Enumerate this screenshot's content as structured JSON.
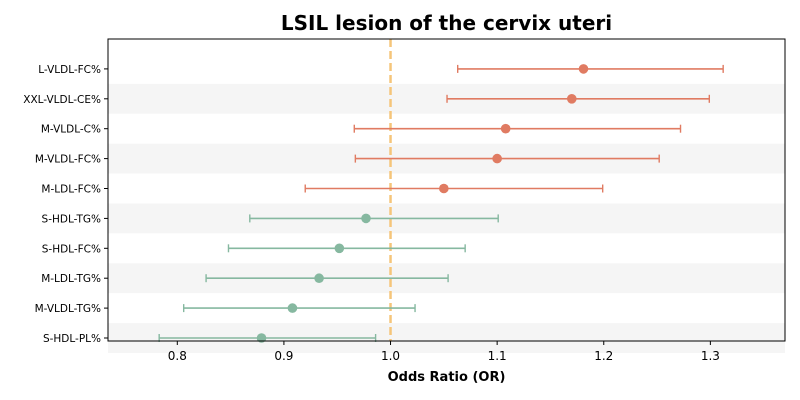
{
  "chart_data": {
    "type": "forest",
    "title": "LSIL lesion of the cervix uteri",
    "xlabel": "Odds Ratio (OR)",
    "xlim": [
      0.735,
      1.37
    ],
    "xticks": [
      "0.8",
      "0.9",
      "1.0",
      "1.1",
      "1.2",
      "1.3"
    ],
    "reference_line": 1.0,
    "colors": {
      "above_one": "#e07b62",
      "below_one": "#86b8a0",
      "reference": "#f5c57a",
      "stripe": "#f5f5f5"
    },
    "rows": [
      {
        "label": "L-VLDL-FC%",
        "or": 1.181,
        "ci_low": 1.063,
        "ci_high": 1.312
      },
      {
        "label": "XXL-VLDL-CE%",
        "or": 1.17,
        "ci_low": 1.053,
        "ci_high": 1.299
      },
      {
        "label": "M-VLDL-C%",
        "or": 1.108,
        "ci_low": 0.966,
        "ci_high": 1.272
      },
      {
        "label": "M-VLDL-FC%",
        "or": 1.1,
        "ci_low": 0.967,
        "ci_high": 1.252
      },
      {
        "label": "M-LDL-FC%",
        "or": 1.05,
        "ci_low": 0.92,
        "ci_high": 1.199
      },
      {
        "label": "S-HDL-TG%",
        "or": 0.977,
        "ci_low": 0.868,
        "ci_high": 1.101
      },
      {
        "label": "S-HDL-FC%",
        "or": 0.952,
        "ci_low": 0.848,
        "ci_high": 1.07
      },
      {
        "label": "M-LDL-TG%",
        "or": 0.933,
        "ci_low": 0.827,
        "ci_high": 1.054
      },
      {
        "label": "M-VLDL-TG%",
        "or": 0.908,
        "ci_low": 0.806,
        "ci_high": 1.023
      },
      {
        "label": "S-HDL-PL%",
        "or": 0.879,
        "ci_low": 0.783,
        "ci_high": 0.986
      }
    ]
  }
}
